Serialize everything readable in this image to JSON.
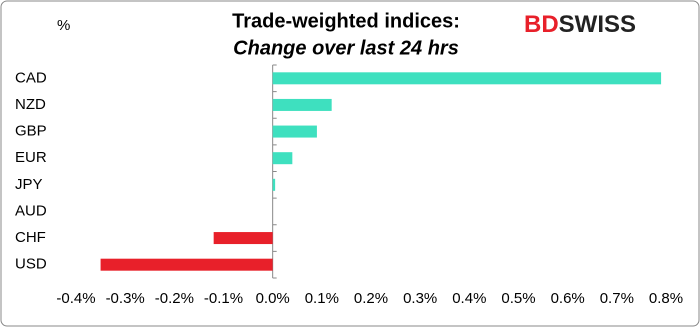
{
  "chart_data": {
    "type": "hbar",
    "title": "Trade-weighted indices:",
    "subtitle": "Change over last 24 hrs",
    "unit_label": "%",
    "logo": [
      "BD",
      "SWISS"
    ],
    "categories": [
      "CAD",
      "NZD",
      "GBP",
      "EUR",
      "JPY",
      "AUD",
      "CHF",
      "USD"
    ],
    "values": [
      0.79,
      0.12,
      0.09,
      0.04,
      0.005,
      0,
      -0.12,
      -0.35
    ],
    "colors": [
      "#3ee0bf",
      "#3ee0bf",
      "#3ee0bf",
      "#3ee0bf",
      "#3ee0bf",
      "#3ee0bf",
      "#e8202a",
      "#e8202a"
    ],
    "xlim": [
      -0.4,
      0.8
    ],
    "xticks": [
      {
        "value": -0.4,
        "label": "-0.4%"
      },
      {
        "value": -0.3,
        "label": "-0.3%"
      },
      {
        "value": -0.2,
        "label": "-0.2%"
      },
      {
        "value": -0.1,
        "label": "-0.1%"
      },
      {
        "value": 0,
        "label": "0.0%"
      },
      {
        "value": 0.1,
        "label": "0.1%"
      },
      {
        "value": 0.2,
        "label": "0.2%"
      },
      {
        "value": 0.3,
        "label": "0.3%"
      },
      {
        "value": 0.4,
        "label": "0.4%"
      },
      {
        "value": 0.5,
        "label": "0.5%"
      },
      {
        "value": 0.6,
        "label": "0.6%"
      },
      {
        "value": 0.7,
        "label": "0.7%"
      },
      {
        "value": 0.8,
        "label": "0.8%"
      }
    ],
    "grid": false
  }
}
